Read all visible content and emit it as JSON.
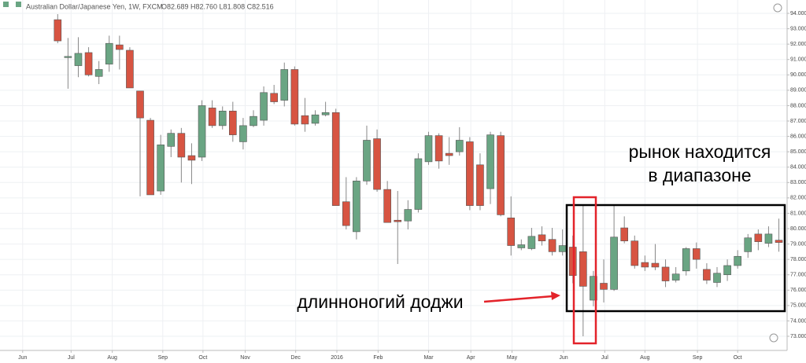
{
  "chart_data": {
    "type": "candlestick",
    "title": "Australian Dollar/Japanese Yen, 1W, FXCM",
    "subtitle": "O82.689 H82.760 L81.808 C82.516",
    "annotations": [
      "рынок находится",
      "в диапазоне",
      "длинноногий доджи"
    ],
    "up_color": "#6aa583",
    "down_color": "#d75442",
    "grid": true,
    "categories": [
      null,
      null,
      null,
      null,
      null,
      null,
      null,
      null,
      null,
      null,
      null,
      null,
      null,
      null,
      null,
      null,
      null,
      null,
      null,
      null,
      null,
      null,
      null,
      null,
      null,
      null,
      null,
      null,
      null,
      null,
      null,
      null,
      null,
      null,
      null,
      null,
      null,
      null,
      null,
      null,
      null,
      null,
      null,
      null,
      null,
      null,
      null,
      null,
      null,
      null,
      null,
      null,
      null,
      null,
      null,
      null,
      null,
      null,
      null,
      null,
      null,
      null,
      null,
      null,
      null,
      null,
      null,
      null,
      null,
      null,
      null
    ],
    "open": [
      93.59,
      91.15,
      90.6,
      91.45,
      89.9,
      90.7,
      91.95,
      91.6,
      88.95,
      87.05,
      82.45,
      85.35,
      86.2,
      84.75,
      84.65,
      87.85,
      86.7,
      87.65,
      85.65,
      86.7,
      87.05,
      88.8,
      88.35,
      90.35,
      87.35,
      86.85,
      87.4,
      87.55,
      81.75,
      79.8,
      83.1,
      85.85,
      82.55,
      80.55,
      80.5,
      81.25,
      84.35,
      86.05,
      84.9,
      85.0,
      85.65,
      84.15,
      82.6,
      86.05,
      80.7,
      78.75,
      78.7,
      79.6,
      79.3,
      78.5,
      78.8,
      78.5,
      75.35,
      76.45,
      76.05,
      80.05,
      79.2,
      77.8,
      77.75,
      77.5,
      76.65,
      77.25,
      78.7,
      77.35,
      76.5,
      77.0,
      77.6,
      78.5,
      79.65,
      79.05,
      79.25
    ],
    "high": [
      93.95,
      92.4,
      92.45,
      91.8,
      90.9,
      92.55,
      92.55,
      91.8,
      88.95,
      87.2,
      86.1,
      86.45,
      86.55,
      85.55,
      88.35,
      88.35,
      87.95,
      88.25,
      87.2,
      87.7,
      89.25,
      89.35,
      90.8,
      90.55,
      88.5,
      87.7,
      88.25,
      87.8,
      83.35,
      83.35,
      86.7,
      86.45,
      83.1,
      82.45,
      81.85,
      84.9,
      86.3,
      86.2,
      85.95,
      86.6,
      85.95,
      84.9,
      86.3,
      86.3,
      82.1,
      79.3,
      80.05,
      80.15,
      80.05,
      79.95,
      79.55,
      81.5,
      77.25,
      78.0,
      81.5,
      80.8,
      79.55,
      78.25,
      79.0,
      78.0,
      77.5,
      78.8,
      79.1,
      77.75,
      77.5,
      78.0,
      78.6,
      79.65,
      79.95,
      80.15,
      80.65
    ],
    "low": [
      92.06,
      89.1,
      89.85,
      89.9,
      89.4,
      90.2,
      90.35,
      89.15,
      82.1,
      82.2,
      82.2,
      84.65,
      83.0,
      82.9,
      84.4,
      86.55,
      86.45,
      85.65,
      85.15,
      86.6,
      86.7,
      88.1,
      87.95,
      86.7,
      86.3,
      86.7,
      87.3,
      81.5,
      79.95,
      79.3,
      82.85,
      82.4,
      80.4,
      77.7,
      79.95,
      81.05,
      84.15,
      83.9,
      84.15,
      84.75,
      81.2,
      81.2,
      81.6,
      80.8,
      78.25,
      78.6,
      78.6,
      78.9,
      78.25,
      78.25,
      76.45,
      73.0,
      74.95,
      75.2,
      75.95,
      79.05,
      77.4,
      77.25,
      77.3,
      76.2,
      76.5,
      76.95,
      77.4,
      76.4,
      76.2,
      76.6,
      77.4,
      78.1,
      78.6,
      78.8,
      78.5
    ],
    "close": [
      92.21,
      91.2,
      91.4,
      90.0,
      90.35,
      92.05,
      91.65,
      89.15,
      87.2,
      82.2,
      85.45,
      86.2,
      84.65,
      84.45,
      88.0,
      86.7,
      87.65,
      86.1,
      86.7,
      87.3,
      88.85,
      88.25,
      90.35,
      86.8,
      86.8,
      87.4,
      87.55,
      81.5,
      80.2,
      83.1,
      85.75,
      82.55,
      80.4,
      80.45,
      81.25,
      84.55,
      86.05,
      84.4,
      84.75,
      85.75,
      81.5,
      81.5,
      86.1,
      80.9,
      78.9,
      78.95,
      79.5,
      79.2,
      78.5,
      78.9,
      76.95,
      76.25,
      76.9,
      76.05,
      79.45,
      79.2,
      77.6,
      77.5,
      77.5,
      76.6,
      77.05,
      78.7,
      78.0,
      76.65,
      77.1,
      77.6,
      78.2,
      79.4,
      79.15,
      79.65,
      79.1
    ],
    "xlim": [
      -5.6,
      70.8
    ],
    "xticks": [
      {
        "value": -3.4,
        "label": "Jun"
      },
      {
        "value": 1.3,
        "label": "Jul"
      },
      {
        "value": 5.3,
        "label": "Aug"
      },
      {
        "value": 10.2,
        "label": "Sep"
      },
      {
        "value": 14.1,
        "label": "Oct"
      },
      {
        "value": 18.2,
        "label": "Nov"
      },
      {
        "value": 23.1,
        "label": "Dec"
      },
      {
        "value": 27.1,
        "label": "2016"
      },
      {
        "value": 31.1,
        "label": "Feb"
      },
      {
        "value": 36,
        "label": "Mar"
      },
      {
        "value": 40.1,
        "label": "Apr"
      },
      {
        "value": 44.1,
        "label": "May"
      },
      {
        "value": 49.1,
        "label": "Jun"
      },
      {
        "value": 53.1,
        "label": "Jul"
      },
      {
        "value": 57,
        "label": "Aug"
      },
      {
        "value": 62.1,
        "label": "Sep"
      },
      {
        "value": 66,
        "label": "Oct"
      }
    ],
    "ylim": [
      72.08,
      94.87
    ],
    "yticks": [
      {
        "value": 73,
        "label": "73.000"
      },
      {
        "value": 74,
        "label": "74.000"
      },
      {
        "value": 75,
        "label": "75.000"
      },
      {
        "value": 76,
        "label": "76.000"
      },
      {
        "value": 77,
        "label": "77.000"
      },
      {
        "value": 78,
        "label": "78.000"
      },
      {
        "value": 79,
        "label": "79.000"
      },
      {
        "value": 80,
        "label": "80.000"
      },
      {
        "value": 81,
        "label": "81.000"
      },
      {
        "value": 82,
        "label": "82.000"
      },
      {
        "value": 83,
        "label": "83.000"
      },
      {
        "value": 84,
        "label": "84.000"
      },
      {
        "value": 85,
        "label": "85.000"
      },
      {
        "value": 86,
        "label": "86.000"
      },
      {
        "value": 87,
        "label": "87.000"
      },
      {
        "value": 88,
        "label": "88.000"
      },
      {
        "value": 89,
        "label": "89.000"
      },
      {
        "value": 90,
        "label": "90.000"
      },
      {
        "value": 91,
        "label": "91.000"
      },
      {
        "value": 92,
        "label": "92.000"
      },
      {
        "value": 93,
        "label": "93.000"
      },
      {
        "value": 94,
        "label": "94.000"
      }
    ]
  }
}
